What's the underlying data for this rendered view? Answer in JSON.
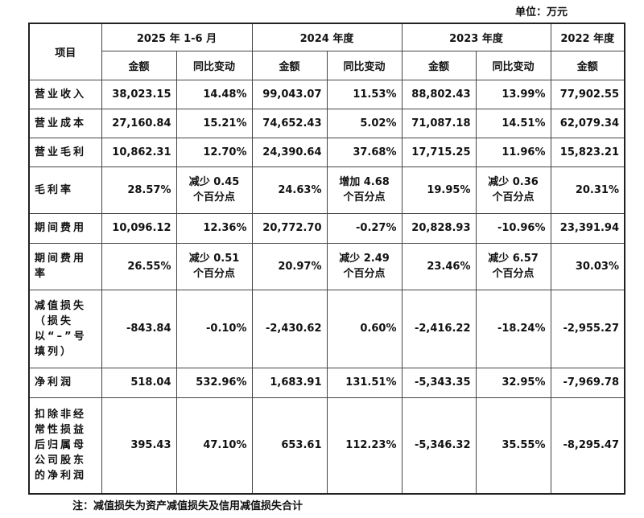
{
  "header": {
    "unit": "单位：万元"
  },
  "table": {
    "head": {
      "item": "项目",
      "periods": [
        "2025 年 1-6 月",
        "2024 年度",
        "2023 年度",
        "2022 年度"
      ],
      "amount": "金额",
      "change": "同比变动"
    },
    "rows": [
      [
        "营业收入",
        "38,023.15",
        "14.48%",
        "99,043.07",
        "11.53%",
        "88,802.43",
        "13.99%",
        "77,902.55"
      ],
      [
        "营业成本",
        "27,160.84",
        "15.21%",
        "74,652.43",
        "5.02%",
        "71,087.18",
        "14.51%",
        "62,079.34"
      ],
      [
        "营业毛利",
        "10,862.31",
        "12.70%",
        "24,390.64",
        "37.68%",
        "17,715.25",
        "11.96%",
        "15,823.21"
      ],
      [
        "毛利率",
        "28.57%",
        "减少 0.45\n个百分点",
        "24.63%",
        "增加 4.68\n个百分点",
        "19.95%",
        "减少 0.36\n个百分点",
        "20.31%"
      ],
      [
        "期间费用",
        "10,096.12",
        "12.36%",
        "20,772.70",
        "-0.27%",
        "20,828.93",
        "-10.96%",
        "23,391.94"
      ],
      [
        "期间费用率",
        "26.55%",
        "减少 0.51\n个百分点",
        "20.97%",
        "减少 2.49\n个百分点",
        "23.46%",
        "减少 6.57\n个百分点",
        "30.03%"
      ],
      [
        "减值损失（损失以“–”号填列）",
        "-843.84",
        "-0.10%",
        "-2,430.62",
        "0.60%",
        "-2,416.22",
        "-18.24%",
        "-2,955.27"
      ],
      [
        "净利润",
        "518.04",
        "532.96%",
        "1,683.91",
        "131.51%",
        "-5,343.35",
        "32.95%",
        "-7,969.78"
      ],
      [
        "扣除非经常性损益后归属母公司股东的净利润",
        "395.43",
        "47.10%",
        "653.61",
        "112.23%",
        "-5,346.32",
        "35.55%",
        "-8,295.47"
      ]
    ]
  },
  "footer": {
    "note": "注：减值损失为资产减值损失及信用减值损失合计"
  }
}
